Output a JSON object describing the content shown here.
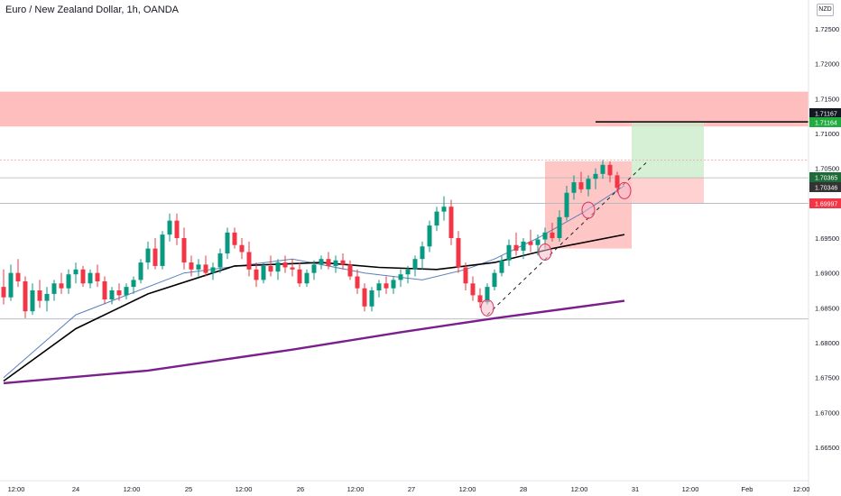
{
  "header": {
    "title": "Euro / New Zealand Dollar, 1h, OANDA",
    "currency_badge": "NZD"
  },
  "colors": {
    "bull": "#089981",
    "bear": "#f23645",
    "zone": "#ffb3b3",
    "stop_zone": "#ffc2c2",
    "target_zone": "#c8ebc8",
    "sma_short": "#5b7fbd",
    "sma_mid": "#000000",
    "sma_long": "#7b1f8c"
  },
  "chart_data": {
    "type": "candlestick",
    "symbol": "Euro / New Zealand Dollar, 1h, OANDA",
    "ylim": [
      1.6625,
      1.7275
    ],
    "y_ticks": [
      "1.72500",
      "1.72000",
      "1.71500",
      "1.71000",
      "1.70500",
      "1.70000",
      "1.69500",
      "1.69000",
      "1.68500",
      "1.68000",
      "1.67500",
      "1.67000",
      "1.66500"
    ],
    "x_ticks": [
      "12:00",
      "24",
      "12:00",
      "25",
      "12:00",
      "26",
      "12:00",
      "27",
      "12:00",
      "28",
      "12:00",
      "31",
      "12:00",
      "Feb",
      "12:00"
    ],
    "price_labels": [
      {
        "text": "1.71167",
        "value": 1.71167,
        "bg": "#131722"
      },
      {
        "text": "1.71164",
        "value": 1.71164,
        "bg": "#22ab3f"
      },
      {
        "text": "1.70365",
        "value": 1.70365,
        "bg": "#1e6b3a"
      },
      {
        "text": "1.70346",
        "value": 1.70346,
        "bg": "#333333"
      },
      {
        "text": "1.69997",
        "value": 1.69997,
        "bg": "#f23645"
      }
    ],
    "zones": [
      {
        "name": "supply",
        "y_top": 1.716,
        "y_bottom": 1.711
      },
      {
        "name": "stop",
        "y_top": 1.706,
        "y_bottom": 1.6935
      },
      {
        "name": "target",
        "y_top": 1.7117,
        "y_bottom": 1.70365
      },
      {
        "name": "risk",
        "y_top": 1.70365,
        "y_bottom": 1.69997
      }
    ],
    "hlines": [
      1.71167,
      1.7062,
      1.70365,
      1.69997,
      1.6834
    ],
    "candles": [
      [
        1.688,
        1.6905,
        1.6855,
        1.6865
      ],
      [
        1.6865,
        1.6912,
        1.686,
        1.69
      ],
      [
        1.69,
        1.692,
        1.688,
        1.6888
      ],
      [
        1.6888,
        1.6895,
        1.6835,
        1.6845
      ],
      [
        1.6845,
        1.6885,
        1.684,
        1.6875
      ],
      [
        1.6875,
        1.689,
        1.685,
        1.686
      ],
      [
        1.686,
        1.688,
        1.6845,
        1.687
      ],
      [
        1.687,
        1.689,
        1.686,
        1.6885
      ],
      [
        1.6885,
        1.69,
        1.687,
        1.6878
      ],
      [
        1.6878,
        1.6905,
        1.687,
        1.6898
      ],
      [
        1.6898,
        1.6915,
        1.6885,
        1.6905
      ],
      [
        1.6905,
        1.691,
        1.688,
        1.6885
      ],
      [
        1.6885,
        1.6905,
        1.6878,
        1.69
      ],
      [
        1.69,
        1.6912,
        1.688,
        1.6888
      ],
      [
        1.6888,
        1.6895,
        1.6855,
        1.6862
      ],
      [
        1.6862,
        1.688,
        1.6855,
        1.6875
      ],
      [
        1.6875,
        1.6885,
        1.686,
        1.6868
      ],
      [
        1.6868,
        1.6885,
        1.6862,
        1.688
      ],
      [
        1.688,
        1.6895,
        1.687,
        1.689
      ],
      [
        1.689,
        1.692,
        1.6885,
        1.6915
      ],
      [
        1.6915,
        1.6945,
        1.6905,
        1.6935
      ],
      [
        1.6935,
        1.695,
        1.6905,
        1.691
      ],
      [
        1.691,
        1.696,
        1.6905,
        1.6955
      ],
      [
        1.6955,
        1.6985,
        1.6945,
        1.6975
      ],
      [
        1.6975,
        1.6985,
        1.694,
        1.695
      ],
      [
        1.695,
        1.6965,
        1.6905,
        1.6915
      ],
      [
        1.6915,
        1.6925,
        1.6895,
        1.6905
      ],
      [
        1.6905,
        1.692,
        1.6895,
        1.6912
      ],
      [
        1.6912,
        1.6925,
        1.6895,
        1.69
      ],
      [
        1.69,
        1.6915,
        1.689,
        1.6908
      ],
      [
        1.6908,
        1.6935,
        1.69,
        1.6928
      ],
      [
        1.6928,
        1.6965,
        1.692,
        1.6958
      ],
      [
        1.6958,
        1.6965,
        1.6935,
        1.694
      ],
      [
        1.694,
        1.695,
        1.692,
        1.693
      ],
      [
        1.693,
        1.6945,
        1.6895,
        1.6905
      ],
      [
        1.6905,
        1.6915,
        1.688,
        1.689
      ],
      [
        1.689,
        1.6915,
        1.6885,
        1.691
      ],
      [
        1.691,
        1.6925,
        1.6895,
        1.6902
      ],
      [
        1.6902,
        1.692,
        1.689,
        1.6915
      ],
      [
        1.6915,
        1.6925,
        1.69,
        1.6908
      ],
      [
        1.6908,
        1.692,
        1.6895,
        1.6905
      ],
      [
        1.6905,
        1.6915,
        1.688,
        1.6885
      ],
      [
        1.6885,
        1.6905,
        1.688,
        1.69
      ],
      [
        1.69,
        1.6918,
        1.689,
        1.6912
      ],
      [
        1.6912,
        1.6925,
        1.6905,
        1.692
      ],
      [
        1.692,
        1.693,
        1.6905,
        1.691
      ],
      [
        1.691,
        1.6925,
        1.69,
        1.6918
      ],
      [
        1.6918,
        1.6928,
        1.6905,
        1.6912
      ],
      [
        1.6912,
        1.6918,
        1.689,
        1.6895
      ],
      [
        1.6895,
        1.6905,
        1.687,
        1.6878
      ],
      [
        1.6878,
        1.6885,
        1.6845,
        1.6852
      ],
      [
        1.6852,
        1.688,
        1.6845,
        1.6875
      ],
      [
        1.6875,
        1.689,
        1.6865,
        1.6885
      ],
      [
        1.6885,
        1.6895,
        1.687,
        1.6878
      ],
      [
        1.6878,
        1.6895,
        1.687,
        1.689
      ],
      [
        1.689,
        1.6905,
        1.688,
        1.6898
      ],
      [
        1.6898,
        1.691,
        1.6885,
        1.6905
      ],
      [
        1.6905,
        1.6925,
        1.6895,
        1.692
      ],
      [
        1.692,
        1.6945,
        1.6905,
        1.6938
      ],
      [
        1.6938,
        1.6975,
        1.693,
        1.6968
      ],
      [
        1.6968,
        1.6995,
        1.696,
        1.6988
      ],
      [
        1.6988,
        1.701,
        1.6975,
        1.6995
      ],
      [
        1.6995,
        1.7005,
        1.694,
        1.695
      ],
      [
        1.695,
        1.696,
        1.69,
        1.6908
      ],
      [
        1.6908,
        1.6915,
        1.6875,
        1.6885
      ],
      [
        1.6885,
        1.6895,
        1.686,
        1.6868
      ],
      [
        1.6868,
        1.6878,
        1.685,
        1.6858
      ],
      [
        1.6858,
        1.6885,
        1.6855,
        1.688
      ],
      [
        1.688,
        1.6905,
        1.6875,
        1.69
      ],
      [
        1.69,
        1.6925,
        1.6895,
        1.6918
      ],
      [
        1.6918,
        1.6948,
        1.691,
        1.694
      ],
      [
        1.694,
        1.6958,
        1.6925,
        1.6932
      ],
      [
        1.6932,
        1.695,
        1.692,
        1.6945
      ],
      [
        1.6945,
        1.6962,
        1.693,
        1.694
      ],
      [
        1.694,
        1.6955,
        1.6925,
        1.6948
      ],
      [
        1.6948,
        1.6965,
        1.6935,
        1.6958
      ],
      [
        1.6958,
        1.6972,
        1.6945,
        1.695
      ],
      [
        1.695,
        1.699,
        1.6945,
        1.698
      ],
      [
        1.698,
        1.7025,
        1.6975,
        1.7015
      ],
      [
        1.7015,
        1.704,
        1.7005,
        1.703
      ],
      [
        1.703,
        1.7045,
        1.7015,
        1.702
      ],
      [
        1.702,
        1.704,
        1.701,
        1.7035
      ],
      [
        1.7035,
        1.705,
        1.702,
        1.7042
      ],
      [
        1.7042,
        1.7062,
        1.7035,
        1.7055
      ],
      [
        1.7055,
        1.706,
        1.703,
        1.704
      ],
      [
        1.704,
        1.7045,
        1.7015,
        1.7022
      ]
    ],
    "series": [
      {
        "name": "",
        "color": "#5b7fbd",
        "points": [
          [
            0,
            1.675
          ],
          [
            10,
            1.684
          ],
          [
            25,
            1.69
          ],
          [
            40,
            1.692
          ],
          [
            50,
            1.69
          ],
          [
            58,
            1.689
          ],
          [
            64,
            1.6905
          ],
          [
            68,
            1.692
          ],
          [
            74,
            1.695
          ],
          [
            80,
            1.6985
          ],
          [
            86,
            1.7025
          ]
        ]
      },
      {
        "name": "",
        "color": "#000000",
        "points": [
          [
            0,
            1.6745
          ],
          [
            10,
            1.682
          ],
          [
            20,
            1.687
          ],
          [
            32,
            1.691
          ],
          [
            44,
            1.6915
          ],
          [
            52,
            1.6908
          ],
          [
            60,
            1.6905
          ],
          [
            68,
            1.6915
          ],
          [
            76,
            1.6935
          ],
          [
            86,
            1.6955
          ]
        ]
      },
      {
        "name": "",
        "color": "#7b1f8c",
        "points": [
          [
            0,
            1.6742
          ],
          [
            20,
            1.676
          ],
          [
            40,
            1.679
          ],
          [
            55,
            1.6815
          ],
          [
            68,
            1.6835
          ],
          [
            86,
            1.686
          ]
        ]
      }
    ],
    "trendline": {
      "points": [
        [
          67,
          1.684
        ],
        [
          89,
          1.7058
        ]
      ],
      "style": "dashed"
    },
    "circles": [
      [
        67,
        1.685
      ],
      [
        75,
        1.693
      ],
      [
        81,
        1.699
      ],
      [
        86,
        1.7018
      ]
    ]
  }
}
